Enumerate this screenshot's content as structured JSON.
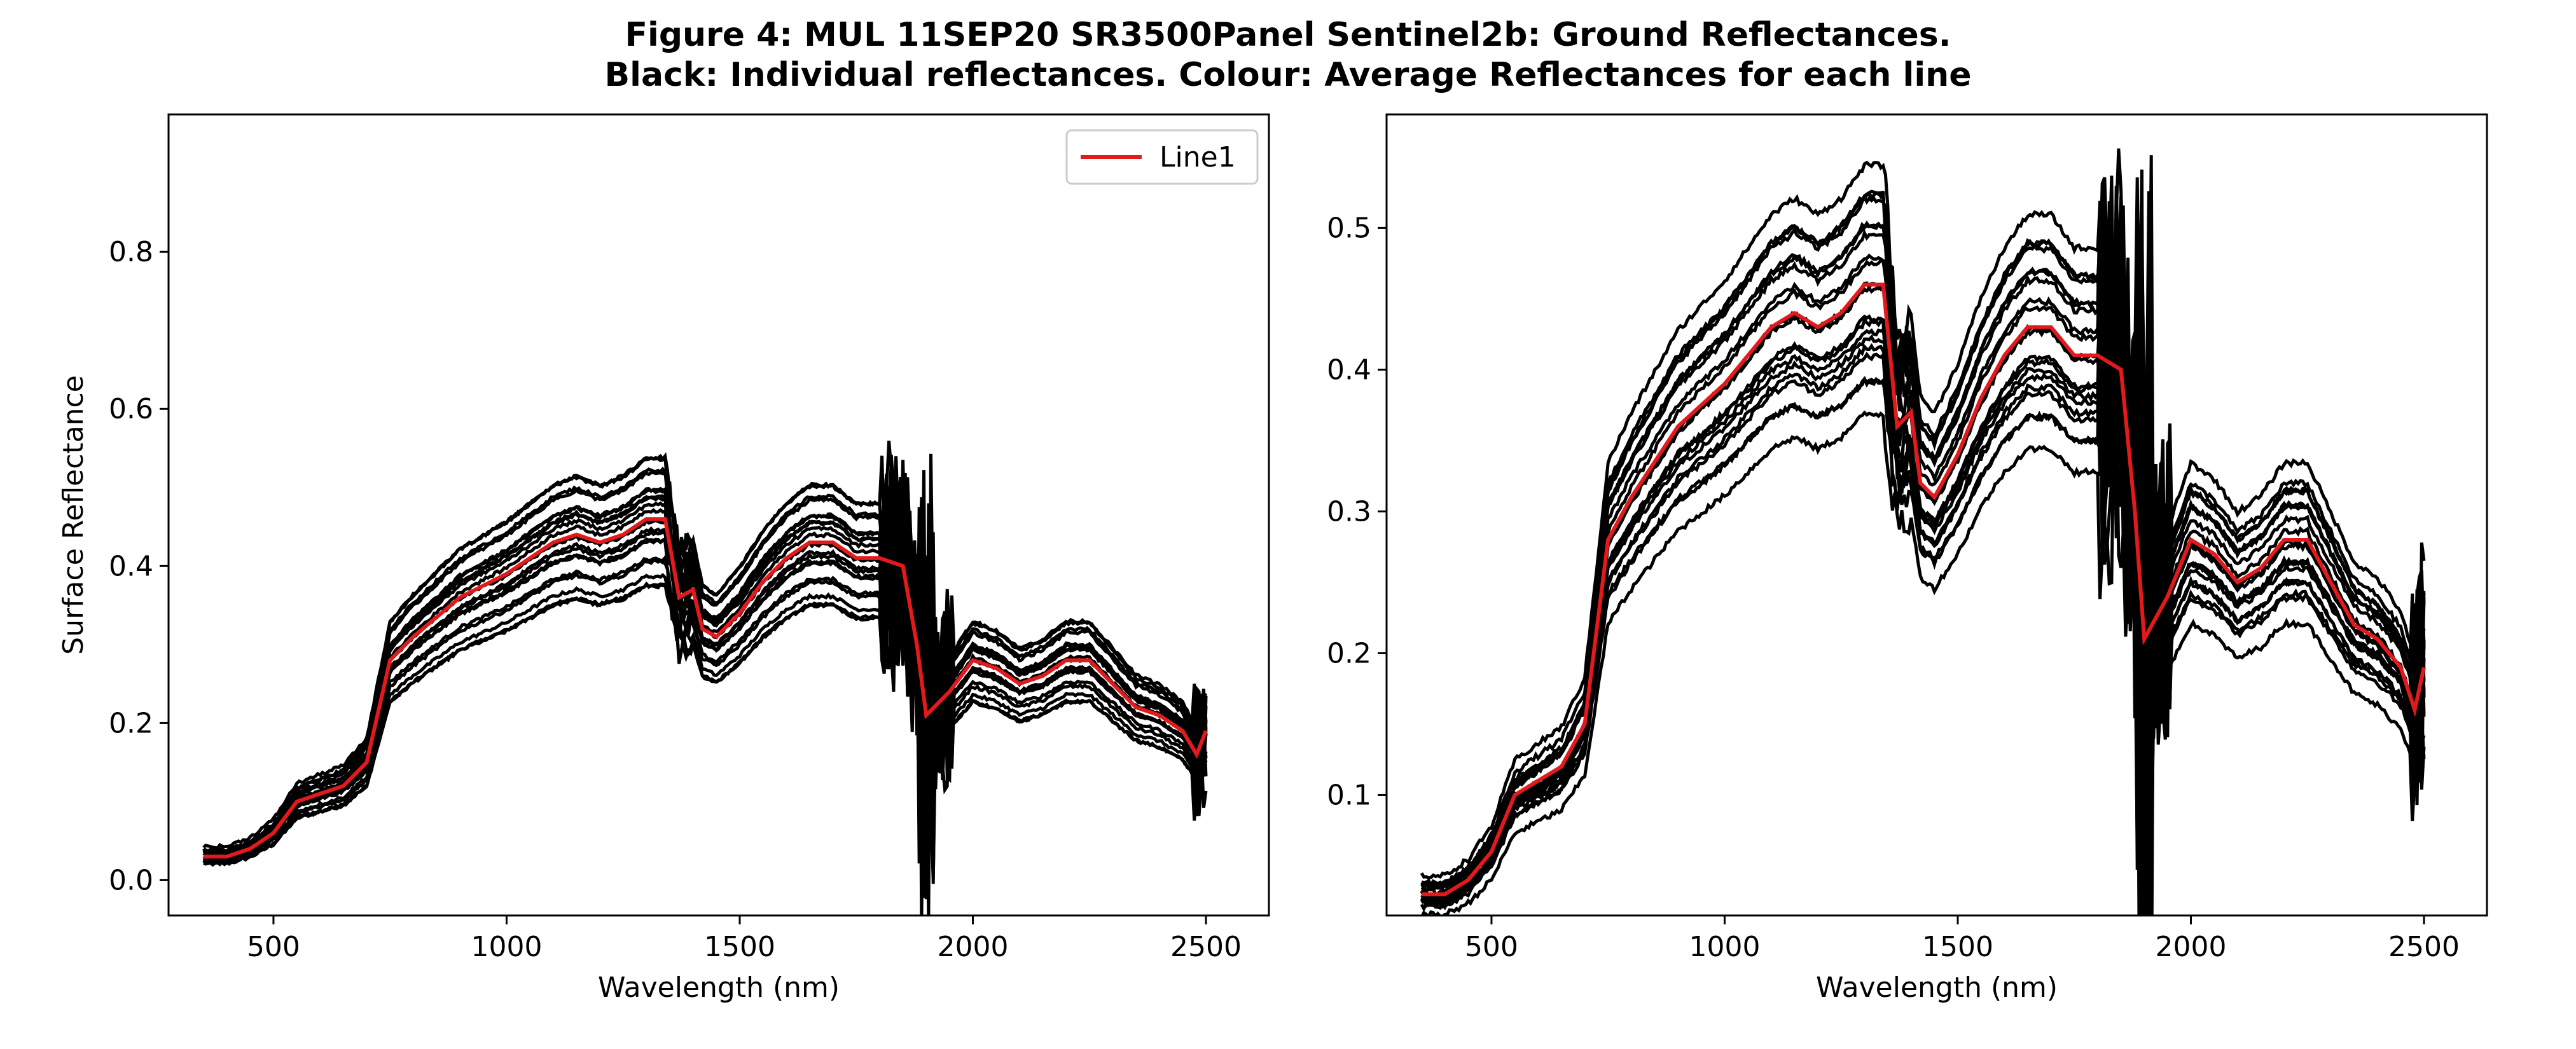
{
  "figure": {
    "title_line1": "Figure 4: MUL 11SEP20 SR3500Panel Sentinel2b: Ground Reflectances.",
    "title_line2": "Black: Individual reflectances. Colour: Average Reflectances for each line"
  },
  "colors": {
    "individual": "#000000",
    "average": "#e31a1c",
    "background": "#ffffff"
  },
  "chart_data": [
    {
      "type": "line",
      "xlabel": "Wavelength (nm)",
      "ylabel": "Surface Reflectance",
      "xlim": [
        275,
        2635
      ],
      "ylim": [
        -0.045,
        0.975
      ],
      "xticks": [
        500,
        1000,
        1500,
        2000,
        2500
      ],
      "xtick_labels": [
        "500",
        "1000",
        "1500",
        "2000",
        "2500"
      ],
      "yticks": [
        0.0,
        0.2,
        0.4,
        0.6,
        0.8
      ],
      "ytick_labels": [
        "0.0",
        "0.2",
        "0.4",
        "0.6",
        "0.8"
      ],
      "grid": false,
      "legend": {
        "position": "upper right",
        "entries": [
          "Line1"
        ]
      },
      "individual_spectra_count": 20,
      "series": [
        {
          "name": "Line1",
          "color": "#e31a1c",
          "x": [
            350,
            400,
            450,
            500,
            550,
            600,
            650,
            700,
            750,
            800,
            900,
            1000,
            1100,
            1150,
            1200,
            1250,
            1300,
            1340,
            1370,
            1400,
            1420,
            1450,
            1500,
            1550,
            1600,
            1650,
            1700,
            1750,
            1800,
            1850,
            1880,
            1900,
            1950,
            2000,
            2050,
            2100,
            2150,
            2200,
            2250,
            2300,
            2350,
            2400,
            2450,
            2480,
            2500
          ],
          "y": [
            0.03,
            0.03,
            0.04,
            0.06,
            0.1,
            0.11,
            0.12,
            0.15,
            0.28,
            0.31,
            0.36,
            0.39,
            0.43,
            0.44,
            0.43,
            0.44,
            0.46,
            0.46,
            0.36,
            0.37,
            0.32,
            0.31,
            0.34,
            0.38,
            0.41,
            0.43,
            0.43,
            0.41,
            0.41,
            0.4,
            0.3,
            0.21,
            0.24,
            0.28,
            0.27,
            0.25,
            0.26,
            0.28,
            0.28,
            0.25,
            0.22,
            0.21,
            0.19,
            0.16,
            0.19
          ]
        }
      ]
    },
    {
      "type": "line",
      "xlabel": "Wavelength (nm)",
      "ylabel": "",
      "xlim": [
        275,
        2635
      ],
      "ylim": [
        0.015,
        0.58
      ],
      "xticks": [
        500,
        1000,
        1500,
        2000,
        2500
      ],
      "xtick_labels": [
        "500",
        "1000",
        "1500",
        "2000",
        "2500"
      ],
      "yticks": [
        0.1,
        0.2,
        0.3,
        0.4,
        0.5
      ],
      "ytick_labels": [
        "0.1",
        "0.2",
        "0.3",
        "0.4",
        "0.5"
      ],
      "grid": false,
      "individual_spectra_count": 20,
      "series": [
        {
          "color": "#e31a1c",
          "x": [
            350,
            400,
            450,
            500,
            550,
            600,
            650,
            700,
            750,
            800,
            900,
            1000,
            1100,
            1150,
            1200,
            1250,
            1300,
            1340,
            1370,
            1400,
            1420,
            1450,
            1500,
            1550,
            1600,
            1650,
            1700,
            1750,
            1800,
            1850,
            1880,
            1900,
            1950,
            2000,
            2050,
            2100,
            2150,
            2200,
            2250,
            2300,
            2350,
            2400,
            2450,
            2480,
            2500
          ],
          "y": [
            0.03,
            0.03,
            0.04,
            0.06,
            0.1,
            0.11,
            0.12,
            0.15,
            0.28,
            0.31,
            0.36,
            0.39,
            0.43,
            0.44,
            0.43,
            0.44,
            0.46,
            0.46,
            0.36,
            0.37,
            0.32,
            0.31,
            0.34,
            0.38,
            0.41,
            0.43,
            0.43,
            0.41,
            0.41,
            0.4,
            0.3,
            0.21,
            0.24,
            0.28,
            0.27,
            0.25,
            0.26,
            0.28,
            0.28,
            0.25,
            0.22,
            0.21,
            0.19,
            0.16,
            0.19
          ]
        }
      ]
    }
  ]
}
